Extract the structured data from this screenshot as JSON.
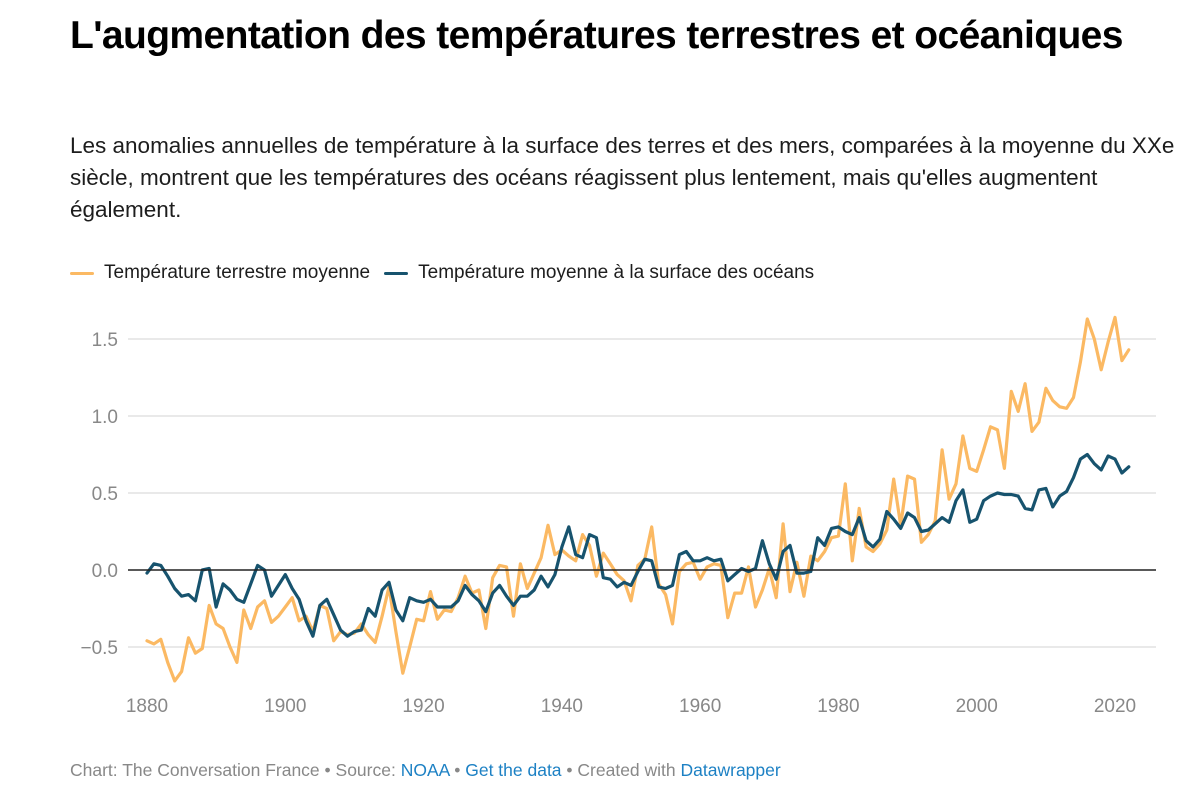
{
  "header": {
    "title": "L'augmentation des températures terrestres et océaniques",
    "subtitle": "Les anomalies annuelles de température à la surface des terres et des mers, comparées à la moyenne du XXe siècle, montrent que les températures des océans réagissent plus lentement, mais qu'elles augmentent également."
  },
  "legend": [
    {
      "label": "Température terrestre moyenne",
      "color": "#fbb963"
    },
    {
      "label": "Température moyenne à la surface des océans",
      "color": "#17536e"
    }
  ],
  "footer": {
    "chart_credit": "Chart: The Conversation France",
    "sep1": " • ",
    "source_prefix": "Source: ",
    "source_link": "NOAA",
    "sep2": " • ",
    "get_data_link": "Get the data",
    "sep3": " • ",
    "created_prefix": "Created with ",
    "datawrapper_link": "Datawrapper"
  },
  "chart_data": {
    "type": "line",
    "title": "L'augmentation des températures terrestres et océaniques",
    "xlabel": "",
    "ylabel": "",
    "xlim": [
      1880,
      2022
    ],
    "ylim": [
      -0.75,
      1.7
    ],
    "x_ticks": [
      1880,
      1900,
      1920,
      1940,
      1960,
      1980,
      2000,
      2020
    ],
    "x_tick_labels": [
      "1880",
      "1900",
      "1920",
      "1940",
      "1960",
      "1980",
      "2000",
      "2020"
    ],
    "y_ticks": [
      -0.5,
      0.0,
      0.5,
      1.0,
      1.5
    ],
    "y_tick_labels": [
      "−0.5",
      "0.0",
      "0.5",
      "1.0",
      "1.5"
    ],
    "grid": true,
    "baseline": 0,
    "legend_position": "top-left",
    "x_start": 1880,
    "series": [
      {
        "name": "Température terrestre moyenne",
        "color": "#fbb963",
        "values": [
          -0.46,
          -0.48,
          -0.45,
          -0.6,
          -0.72,
          -0.66,
          -0.44,
          -0.54,
          -0.51,
          -0.23,
          -0.35,
          -0.38,
          -0.5,
          -0.6,
          -0.26,
          -0.38,
          -0.24,
          -0.2,
          -0.34,
          -0.3,
          -0.24,
          -0.18,
          -0.33,
          -0.3,
          -0.4,
          -0.23,
          -0.25,
          -0.46,
          -0.4,
          -0.42,
          -0.41,
          -0.35,
          -0.42,
          -0.47,
          -0.3,
          -0.11,
          -0.4,
          -0.67,
          -0.5,
          -0.32,
          -0.33,
          -0.14,
          -0.32,
          -0.26,
          -0.27,
          -0.18,
          -0.04,
          -0.15,
          -0.13,
          -0.38,
          -0.05,
          0.03,
          0.02,
          -0.3,
          0.04,
          -0.12,
          -0.02,
          0.08,
          0.29,
          0.1,
          0.13,
          0.09,
          0.06,
          0.23,
          0.16,
          -0.04,
          0.11,
          0.04,
          -0.03,
          -0.07,
          -0.2,
          0.03,
          0.07,
          0.28,
          -0.09,
          -0.16,
          -0.35,
          -0.01,
          0.04,
          0.05,
          -0.06,
          0.02,
          0.04,
          0.03,
          -0.31,
          -0.15,
          -0.15,
          0.02,
          -0.24,
          -0.13,
          0.01,
          -0.18,
          0.3,
          -0.14,
          0.05,
          -0.17,
          0.09,
          0.06,
          0.12,
          0.21,
          0.22,
          0.56,
          0.06,
          0.4,
          0.15,
          0.12,
          0.17,
          0.26,
          0.59,
          0.29,
          0.61,
          0.59,
          0.18,
          0.23,
          0.32,
          0.78,
          0.46,
          0.56,
          0.87,
          0.66,
          0.64,
          0.78,
          0.93,
          0.91,
          0.66,
          1.16,
          1.03,
          1.21,
          0.9,
          0.96,
          1.18,
          1.1,
          1.06,
          1.05,
          1.12,
          1.35,
          1.63,
          1.5,
          1.3,
          1.48,
          1.64,
          1.36,
          1.43
        ]
      },
      {
        "name": "Température moyenne à la surface des océans",
        "color": "#17536e",
        "values": [
          -0.02,
          0.04,
          0.03,
          -0.04,
          -0.12,
          -0.17,
          -0.16,
          -0.2,
          0.0,
          0.01,
          -0.24,
          -0.09,
          -0.13,
          -0.19,
          -0.21,
          -0.09,
          0.03,
          0.0,
          -0.17,
          -0.1,
          -0.03,
          -0.12,
          -0.19,
          -0.33,
          -0.43,
          -0.23,
          -0.19,
          -0.29,
          -0.39,
          -0.43,
          -0.4,
          -0.39,
          -0.25,
          -0.3,
          -0.13,
          -0.08,
          -0.26,
          -0.33,
          -0.18,
          -0.2,
          -0.21,
          -0.19,
          -0.24,
          -0.24,
          -0.24,
          -0.2,
          -0.1,
          -0.16,
          -0.2,
          -0.27,
          -0.15,
          -0.1,
          -0.17,
          -0.23,
          -0.17,
          -0.17,
          -0.13,
          -0.04,
          -0.11,
          -0.03,
          0.15,
          0.28,
          0.1,
          0.08,
          0.23,
          0.21,
          -0.05,
          -0.06,
          -0.11,
          -0.08,
          -0.1,
          -0.01,
          0.07,
          0.06,
          -0.11,
          -0.12,
          -0.1,
          0.1,
          0.12,
          0.06,
          0.06,
          0.08,
          0.06,
          0.07,
          -0.07,
          -0.03,
          0.01,
          -0.01,
          0.01,
          0.19,
          0.04,
          -0.06,
          0.12,
          0.16,
          -0.02,
          -0.02,
          -0.01,
          0.21,
          0.16,
          0.27,
          0.28,
          0.25,
          0.23,
          0.34,
          0.19,
          0.15,
          0.2,
          0.38,
          0.33,
          0.27,
          0.37,
          0.34,
          0.25,
          0.26,
          0.3,
          0.34,
          0.31,
          0.45,
          0.52,
          0.31,
          0.33,
          0.45,
          0.48,
          0.5,
          0.49,
          0.49,
          0.48,
          0.4,
          0.39,
          0.52,
          0.53,
          0.41,
          0.48,
          0.51,
          0.6,
          0.72,
          0.75,
          0.69,
          0.65,
          0.74,
          0.72,
          0.63,
          0.67
        ]
      }
    ]
  }
}
